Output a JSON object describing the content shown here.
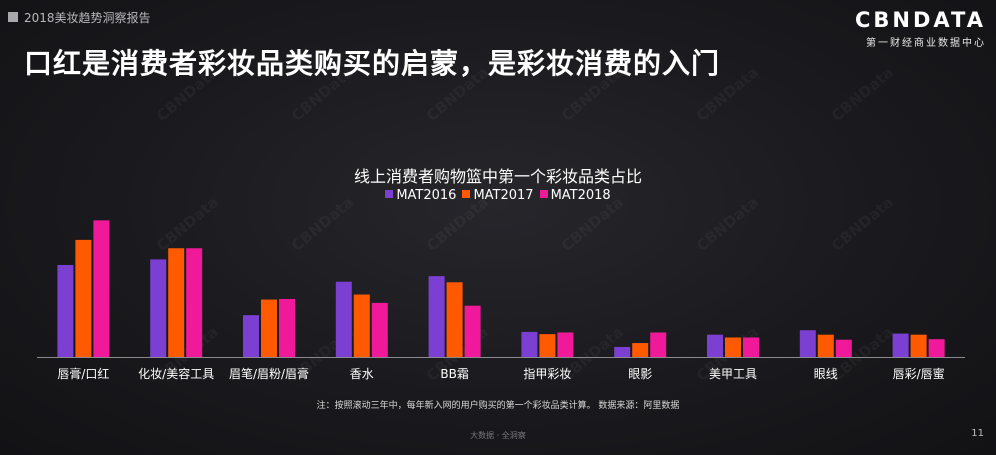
{
  "report_label": "2018美妆趋势洞察报告",
  "logo": {
    "main": "CBNDATA",
    "sub": "第一财经商业数据中心"
  },
  "page_title": "口红是消费者彩妆品类购买的启蒙，是彩妆消费的入门",
  "watermark": "CBNData",
  "chart_data": {
    "type": "bar",
    "title": "线上消费者购物篮中第一个彩妆品类占比",
    "categories": [
      "唇膏/口红",
      "化妆/美容工具",
      "眉笔/眉粉/眉膏",
      "香水",
      "BB霜",
      "指甲彩妆",
      "眼影",
      "美甲工具",
      "眼线",
      "唇彩/唇蜜"
    ],
    "series": [
      {
        "name": "MAT2016",
        "color": "#7b3fd2",
        "values": [
          16.5,
          17.5,
          7.5,
          13.5,
          14.5,
          4.5,
          1.8,
          4.0,
          4.8,
          4.2
        ]
      },
      {
        "name": "MAT2017",
        "color": "#ff5a00",
        "values": [
          21.0,
          19.5,
          10.3,
          11.2,
          13.4,
          4.1,
          2.5,
          3.5,
          4.0,
          4.0
        ]
      },
      {
        "name": "MAT2018",
        "color": "#f0199a",
        "values": [
          24.5,
          19.5,
          10.4,
          9.7,
          9.2,
          4.4,
          4.4,
          3.5,
          3.1,
          3.2
        ]
      }
    ],
    "ylim": [
      0,
      26
    ],
    "xlabel": "",
    "ylabel": "",
    "grid": false,
    "legend_position": "top-center"
  },
  "footnote": "注：按照滚动三年中，每年新入网的用户购买的第一个彩妆品类计算。 数据来源：阿里数据",
  "footer_center": "大数据 · 全洞察",
  "page_number": "11"
}
